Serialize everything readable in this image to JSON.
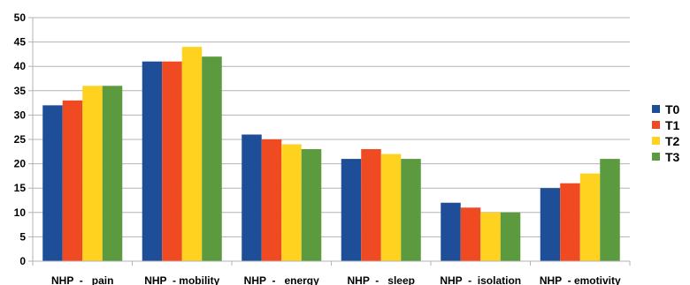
{
  "chart_data": {
    "type": "bar",
    "categories": [
      "NHP  -   pain",
      "NHP  - mobility",
      "NHP  -   energy",
      "NHP  -   sleep",
      "NHP  -  isolation",
      "NHP  - emotivity"
    ],
    "series": [
      {
        "name": "T0",
        "values": [
          32,
          41,
          26,
          21,
          12,
          15
        ],
        "color": "#1f4e99"
      },
      {
        "name": "T1",
        "values": [
          33,
          41,
          25,
          23,
          11,
          16
        ],
        "color": "#f04a23"
      },
      {
        "name": "T2",
        "values": [
          36,
          44,
          24,
          22,
          10,
          18
        ],
        "color": "#ffd21f"
      },
      {
        "name": "T3",
        "values": [
          36,
          42,
          23,
          21,
          10,
          21
        ],
        "color": "#5b9a3f"
      }
    ],
    "yticks": [
      "0",
      "5",
      "10",
      "15",
      "20",
      "25",
      "30",
      "35",
      "40",
      "45",
      "50"
    ],
    "ylim": [
      0,
      50
    ],
    "grid": true,
    "legend": "right"
  }
}
